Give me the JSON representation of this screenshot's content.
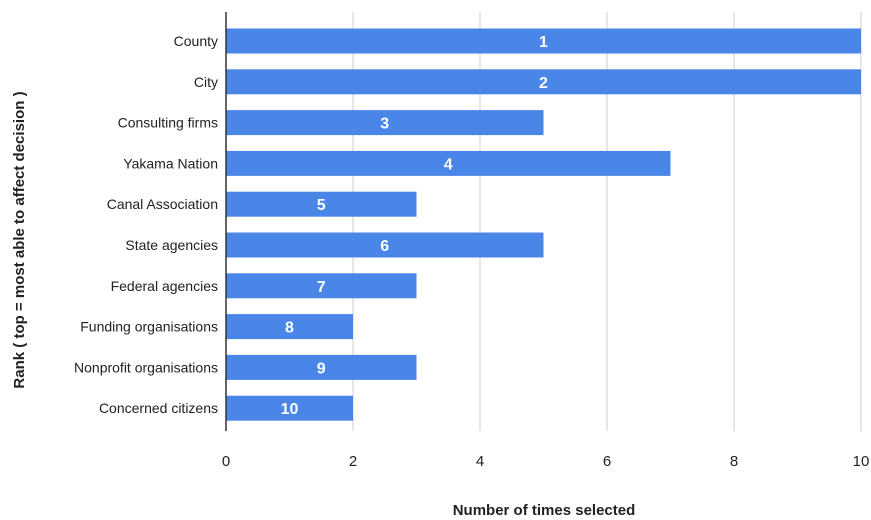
{
  "chart_data": {
    "type": "bar",
    "orientation": "horizontal",
    "categories": [
      "County",
      "City",
      "Consulting firms",
      "Yakama Nation",
      "Canal Association",
      "State agencies",
      "Federal agencies",
      "Funding organisations",
      "Nonprofit organisations",
      "Concerned citizens"
    ],
    "values": [
      10,
      10,
      5,
      7,
      3,
      5,
      3,
      2,
      3,
      2
    ],
    "data_labels": [
      "1",
      "2",
      "3",
      "4",
      "5",
      "6",
      "7",
      "8",
      "9",
      "10"
    ],
    "xlabel": "Number of times selected",
    "ylabel": "Rank ( top = most able to affect decision )",
    "xlim": [
      0,
      10
    ],
    "xticks": [
      "0",
      "2",
      "4",
      "6",
      "8",
      "10"
    ],
    "grid": "vertical",
    "legend": "none",
    "bar_color": "#4a86e8",
    "grid_color": "#cccccc",
    "axis_color": "#333333"
  }
}
